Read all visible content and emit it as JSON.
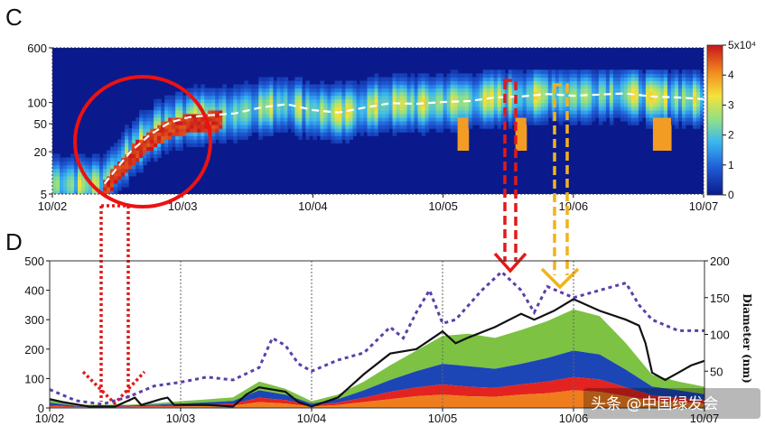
{
  "chart_data": [
    {
      "type": "heatmap",
      "panel_label": "C",
      "x_ticks": [
        "10/02",
        "10/03",
        "10/04",
        "10/05",
        "10/06",
        "10/07"
      ],
      "y_ticks": [
        {
          "value": 5,
          "label": "5"
        },
        {
          "value": 20,
          "label": "20"
        },
        {
          "value": 50,
          "label": "50"
        },
        {
          "value": 100,
          "label": "100"
        },
        {
          "value": 600,
          "label": "600"
        }
      ],
      "y_scale": "log",
      "ylim": [
        5,
        600
      ],
      "colorbar": {
        "ticks": [
          "0",
          "1",
          "2",
          "3",
          "4",
          "5x10⁴"
        ],
        "range": [
          0,
          50000
        ],
        "colors": [
          "#0a1a8c",
          "#1e5bd6",
          "#39b6f0",
          "#8ee08a",
          "#f5e23a",
          "#f28a1e",
          "#c8141a"
        ]
      },
      "median_diameter_line": [
        [
          0.4,
          7
        ],
        [
          0.5,
          12
        ],
        [
          0.6,
          20
        ],
        [
          0.75,
          35
        ],
        [
          0.9,
          52
        ],
        [
          1.05,
          62
        ],
        [
          1.2,
          66
        ],
        [
          1.4,
          70
        ],
        [
          1.6,
          85
        ],
        [
          1.8,
          95
        ],
        [
          2.0,
          78
        ],
        [
          2.2,
          72
        ],
        [
          2.4,
          85
        ],
        [
          2.6,
          98
        ],
        [
          2.8,
          96
        ],
        [
          3.0,
          102
        ],
        [
          3.2,
          105
        ],
        [
          3.4,
          118
        ],
        [
          3.6,
          122
        ],
        [
          3.8,
          132
        ],
        [
          4.0,
          125
        ],
        [
          4.2,
          130
        ],
        [
          4.4,
          135
        ],
        [
          4.6,
          122
        ],
        [
          4.8,
          118
        ],
        [
          5.0,
          112
        ]
      ]
    },
    {
      "type": "area",
      "panel_label": "D",
      "x_ticks": [
        "10/02",
        "10/03",
        "10/04",
        "10/05",
        "10/06",
        "10/07"
      ],
      "ylim": [
        0,
        500
      ],
      "y_ticks": [
        0,
        100,
        200,
        300,
        400,
        500
      ],
      "y2_label": "Diameter (nm)",
      "y2lim": [
        0,
        200
      ],
      "y2_ticks": [
        50,
        100,
        150,
        200
      ],
      "x": [
        0.0,
        0.2,
        0.4,
        0.6,
        0.8,
        1.0,
        1.2,
        1.4,
        1.6,
        1.8,
        2.0,
        2.2,
        2.4,
        2.6,
        2.8,
        3.0,
        3.2,
        3.4,
        3.6,
        3.8,
        4.0,
        4.2,
        4.4,
        4.6,
        4.8,
        5.0
      ],
      "stacked_series": [
        {
          "color": "#ef7d1e",
          "values": [
            5,
            2,
            3,
            3,
            4,
            5,
            6,
            8,
            20,
            15,
            5,
            10,
            20,
            30,
            40,
            45,
            40,
            38,
            45,
            50,
            60,
            55,
            40,
            25,
            20,
            15
          ]
        },
        {
          "color": "#e3231f",
          "values": [
            5,
            2,
            2,
            2,
            3,
            4,
            5,
            6,
            15,
            12,
            4,
            8,
            15,
            25,
            30,
            35,
            32,
            30,
            35,
            40,
            45,
            42,
            30,
            18,
            15,
            12
          ]
        },
        {
          "color": "#1c46b5",
          "values": [
            8,
            3,
            3,
            3,
            4,
            6,
            8,
            10,
            25,
            18,
            6,
            12,
            25,
            40,
            55,
            70,
            70,
            65,
            70,
            80,
            90,
            85,
            60,
            30,
            25,
            20
          ]
        },
        {
          "color": "#7dc242",
          "values": [
            12,
            4,
            3,
            3,
            5,
            8,
            10,
            12,
            30,
            20,
            8,
            15,
            30,
            50,
            70,
            95,
            110,
            105,
            115,
            125,
            140,
            130,
            90,
            40,
            30,
            25
          ]
        }
      ],
      "total_line": [
        [
          0.0,
          30
        ],
        [
          0.1,
          20
        ],
        [
          0.3,
          5
        ],
        [
          0.5,
          5
        ],
        [
          0.6,
          25
        ],
        [
          0.65,
          35
        ],
        [
          0.7,
          10
        ],
        [
          0.85,
          30
        ],
        [
          0.9,
          35
        ],
        [
          0.95,
          10
        ],
        [
          1.2,
          10
        ],
        [
          1.4,
          5
        ],
        [
          1.5,
          45
        ],
        [
          1.6,
          70
        ],
        [
          1.8,
          55
        ],
        [
          1.9,
          20
        ],
        [
          2.0,
          5
        ],
        [
          2.2,
          35
        ],
        [
          2.4,
          115
        ],
        [
          2.6,
          185
        ],
        [
          2.8,
          200
        ],
        [
          3.0,
          260
        ],
        [
          3.1,
          220
        ],
        [
          3.2,
          240
        ],
        [
          3.4,
          275
        ],
        [
          3.6,
          320
        ],
        [
          3.7,
          300
        ],
        [
          3.85,
          330
        ],
        [
          4.0,
          370
        ],
        [
          4.2,
          330
        ],
        [
          4.4,
          300
        ],
        [
          4.5,
          280
        ],
        [
          4.55,
          220
        ],
        [
          4.6,
          120
        ],
        [
          4.7,
          95
        ],
        [
          4.8,
          120
        ],
        [
          4.9,
          145
        ],
        [
          5.0,
          160
        ]
      ],
      "diameter_line": [
        [
          0.0,
          25
        ],
        [
          0.2,
          10
        ],
        [
          0.4,
          5
        ],
        [
          0.6,
          15
        ],
        [
          0.8,
          30
        ],
        [
          1.0,
          35
        ],
        [
          1.2,
          42
        ],
        [
          1.4,
          38
        ],
        [
          1.6,
          55
        ],
        [
          1.7,
          95
        ],
        [
          1.8,
          85
        ],
        [
          1.9,
          60
        ],
        [
          2.0,
          50
        ],
        [
          2.2,
          65
        ],
        [
          2.4,
          75
        ],
        [
          2.6,
          110
        ],
        [
          2.7,
          95
        ],
        [
          2.8,
          130
        ],
        [
          2.9,
          160
        ],
        [
          3.0,
          115
        ],
        [
          3.1,
          120
        ],
        [
          3.2,
          140
        ],
        [
          3.3,
          160
        ],
        [
          3.45,
          185
        ],
        [
          3.6,
          160
        ],
        [
          3.7,
          130
        ],
        [
          3.8,
          165
        ],
        [
          4.0,
          150
        ],
        [
          4.2,
          160
        ],
        [
          4.4,
          170
        ],
        [
          4.5,
          140
        ],
        [
          4.6,
          120
        ],
        [
          4.8,
          105
        ],
        [
          5.0,
          105
        ]
      ]
    }
  ],
  "watermark": "头条 @中国绿发会"
}
